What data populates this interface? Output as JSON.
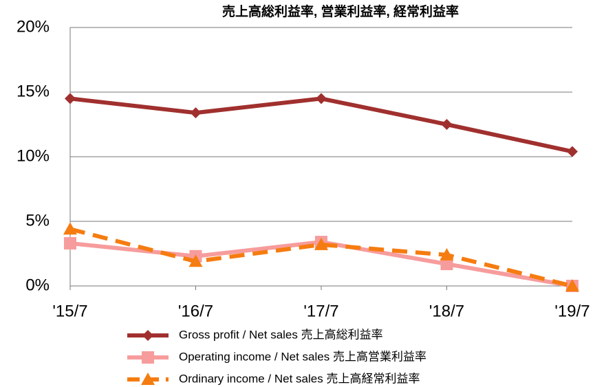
{
  "chart_data": {
    "type": "line",
    "title": "売上高総利益率, 営業利益率, 経常利益率",
    "categories": [
      "'15/7",
      "'16/7",
      "'17/7",
      "'18/7",
      "'19/7"
    ],
    "series": [
      {
        "name": "Gross profit / Net sales 売上高総利益率",
        "color": "#a0302e",
        "marker": "diamond",
        "dashed": false,
        "values": [
          14.5,
          13.4,
          14.5,
          12.5,
          10.4
        ]
      },
      {
        "name": "Operating income / Net sales 売上高営業利益率",
        "color": "#f79c9c",
        "marker": "square",
        "dashed": false,
        "values": [
          3.3,
          2.3,
          3.4,
          1.7,
          0
        ]
      },
      {
        "name": "Ordinary income / Net sales 売上高経常利益率",
        "color": "#f57c10",
        "marker": "triangle",
        "dashed": true,
        "values": [
          4.4,
          1.9,
          3.2,
          2.4,
          0
        ]
      }
    ],
    "ylim": [
      0,
      20
    ],
    "yticks": [
      {
        "value": 0,
        "label": "0%"
      },
      {
        "value": 5,
        "label": "5%"
      },
      {
        "value": 10,
        "label": "10%"
      },
      {
        "value": 15,
        "label": "15%"
      },
      {
        "value": 20,
        "label": "20%"
      }
    ],
    "grid": true,
    "legend": "bottom"
  }
}
